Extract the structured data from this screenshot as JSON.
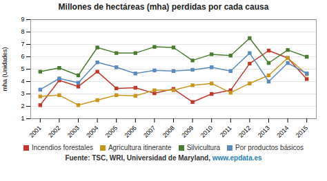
{
  "chart_data": {
    "type": "line",
    "title": "Millones de hectáreas (mha) perdidas por cada causa",
    "ylabel": "mha (Unidades)",
    "x": [
      2001,
      2002,
      2003,
      2004,
      2005,
      2006,
      2007,
      2008,
      2009,
      2010,
      2011,
      2012,
      2013,
      2014,
      2015
    ],
    "xlim": [
      2000.5,
      2015.5
    ],
    "xticks": [
      2001,
      2002,
      2003,
      2004,
      2005,
      2006,
      2007,
      2008,
      2009,
      2010,
      2011,
      2012,
      2013,
      2014,
      2015
    ],
    "ylim": [
      1,
      9
    ],
    "yticks": [
      1,
      2,
      3,
      4,
      5,
      6,
      7,
      8,
      9
    ],
    "grid": true,
    "legend": "bottom",
    "series": [
      {
        "name": "Incendios forestales",
        "color": "#c0392b",
        "marker": "square",
        "values": [
          2.1,
          4.1,
          3.6,
          4.8,
          3.45,
          3.5,
          3.05,
          3.4,
          2.35,
          3.0,
          3.3,
          5.45,
          6.5,
          5.9,
          4.2
        ]
      },
      {
        "name": "Agricultura itinerante",
        "color": "#c8961e",
        "marker": "square",
        "values": [
          2.8,
          2.9,
          2.1,
          2.5,
          2.9,
          2.85,
          3.3,
          3.3,
          3.7,
          3.85,
          3.1,
          3.85,
          4.5,
          5.9,
          4.6
        ]
      },
      {
        "name": "Silvicultura",
        "color": "#4a7c2f",
        "marker": "square",
        "values": [
          4.8,
          5.1,
          4.5,
          6.75,
          6.3,
          6.3,
          6.8,
          6.75,
          5.7,
          6.2,
          6.1,
          7.5,
          5.5,
          6.55,
          6.0
        ]
      },
      {
        "name": "Por productos básicos",
        "color": "#5b8abe",
        "marker": "square",
        "values": [
          3.35,
          4.25,
          3.9,
          5.55,
          5.15,
          4.65,
          4.9,
          4.85,
          4.95,
          5.15,
          4.85,
          6.3,
          4.0,
          5.5,
          4.65
        ]
      }
    ],
    "annotations": [
      {
        "text": "Fuente: TSC, WRI, Universidad de Maryland, ",
        "color": "#333333"
      },
      {
        "text": "www.epdata.es",
        "color": "#2980b9"
      }
    ]
  }
}
